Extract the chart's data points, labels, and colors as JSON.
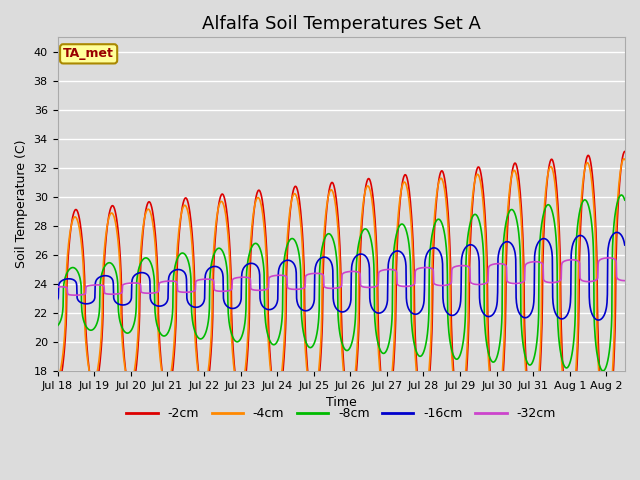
{
  "title": "Alfalfa Soil Temperatures Set A",
  "xlabel": "Time",
  "ylabel": "Soil Temperature (C)",
  "ylim": [
    18,
    41
  ],
  "yticks": [
    18,
    20,
    22,
    24,
    26,
    28,
    30,
    32,
    34,
    36,
    38,
    40
  ],
  "background_color": "#dcdcdc",
  "plot_bg_color": "#dcdcdc",
  "grid_color": "#ffffff",
  "annotation_text": "TA_met",
  "annotation_color": "#990000",
  "annotation_bg": "#ffff99",
  "annotation_border": "#aa8800",
  "series": [
    {
      "label": "-2cm",
      "color": "#dd0000",
      "lw": 1.2
    },
    {
      "label": "-4cm",
      "color": "#ff8800",
      "lw": 1.2
    },
    {
      "label": "-8cm",
      "color": "#00bb00",
      "lw": 1.2
    },
    {
      "label": "-16cm",
      "color": "#0000cc",
      "lw": 1.2
    },
    {
      "label": "-32cm",
      "color": "#cc44cc",
      "lw": 1.2
    }
  ],
  "xtick_labels": [
    "Jul 18",
    "Jul 19",
    "Jul 20",
    "Jul 21",
    "Jul 22",
    "Jul 23",
    "Jul 24",
    "Jul 25",
    "Jul 26",
    "Jul 27",
    "Jul 28",
    "Jul 29",
    "Jul 30",
    "Jul 31",
    "Aug 1",
    "Aug 2"
  ],
  "title_fontsize": 13,
  "axis_fontsize": 9,
  "tick_fontsize": 8,
  "legend_fontsize": 9
}
